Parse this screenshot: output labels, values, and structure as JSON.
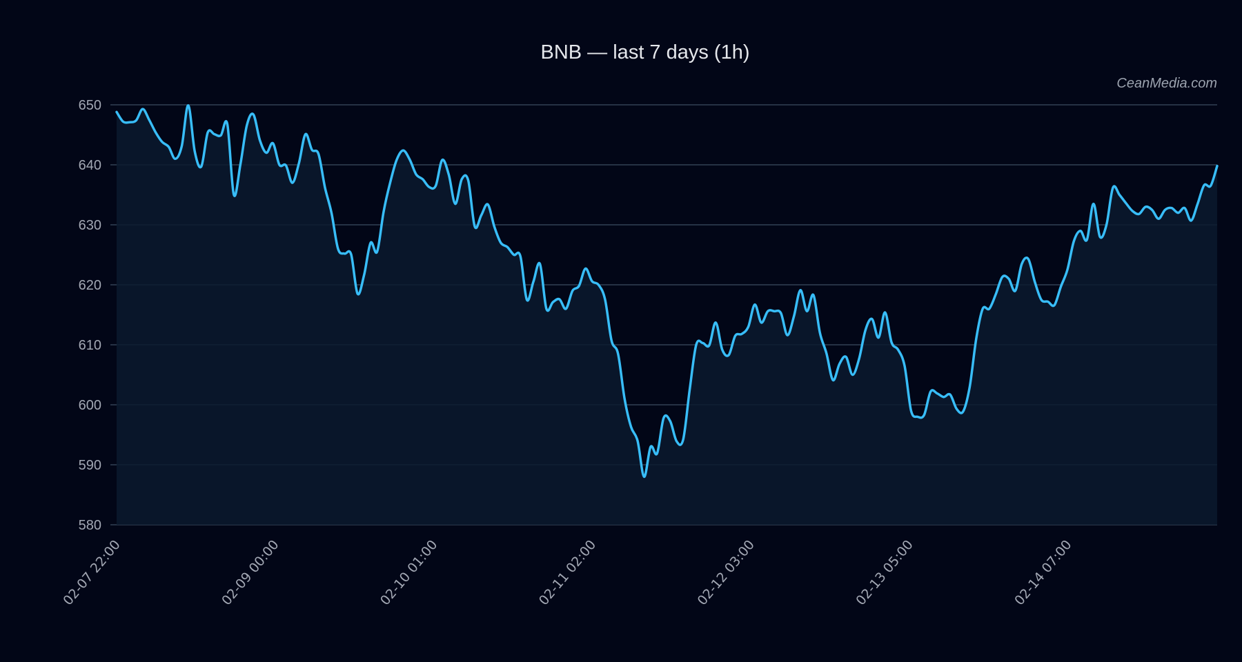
{
  "header": {
    "title": "BNB — last 7 days (1h)",
    "watermark": "CeanMedia.com"
  },
  "colors": {
    "background": "#020617",
    "line": "#38bdf8",
    "area": "#0b1a2e",
    "grid": "#334155",
    "text": "#a3a8b4"
  },
  "chart_data": {
    "type": "area",
    "title": "BNB — last 7 days (1h)",
    "xlabel": "",
    "ylabel": "",
    "ylim": [
      580,
      650
    ],
    "yticks": [
      580,
      590,
      600,
      610,
      620,
      630,
      640,
      650
    ],
    "xticks": [
      "02-07 22:00",
      "02-09 00:00",
      "02-10 01:00",
      "02-11 02:00",
      "02-12 03:00",
      "02-13 05:00",
      "02-14 07:00"
    ],
    "grid": true,
    "legend": null,
    "annotations": [
      "CeanMedia.com"
    ],
    "series": [
      {
        "name": "BNB",
        "x_start": "02-07 22:00",
        "interval": "1h",
        "values": [
          648.8,
          647.2,
          647.1,
          647.4,
          649.3,
          647.5,
          645.4,
          643.8,
          643.0,
          641.0,
          643.1,
          649.9,
          642.2,
          639.7,
          645.4,
          645.1,
          644.9,
          646.8,
          635.0,
          640.0,
          646.6,
          648.4,
          644.1,
          642.0,
          643.6,
          640.0,
          639.9,
          637.0,
          640.3,
          645.1,
          642.5,
          641.8,
          636.2,
          632.0,
          626.0,
          625.2,
          625.1,
          618.5,
          621.6,
          627.0,
          625.5,
          632.2,
          637.0,
          640.8,
          642.4,
          640.9,
          638.4,
          637.6,
          636.3,
          636.5,
          640.8,
          638.4,
          633.5,
          637.6,
          637.4,
          629.7,
          631.6,
          633.4,
          629.7,
          627.0,
          626.3,
          625.0,
          624.8,
          617.5,
          620.5,
          623.5,
          616.0,
          617.1,
          617.6,
          616.0,
          619.0,
          619.8,
          622.7,
          620.6,
          620.0,
          617.6,
          610.7,
          608.5,
          601.0,
          596.3,
          594.0,
          588.0,
          593.0,
          591.9,
          597.8,
          597.3,
          593.9,
          594.2,
          602.5,
          610.0,
          610.3,
          609.9,
          613.7,
          609.2,
          608.3,
          611.5,
          611.8,
          613.0,
          616.7,
          613.7,
          615.6,
          615.6,
          615.3,
          611.6,
          614.7,
          619.1,
          615.6,
          618.3,
          612.0,
          608.6,
          604.1,
          606.8,
          608.0,
          605.0,
          607.6,
          612.5,
          614.3,
          611.2,
          615.4,
          610.4,
          609.2,
          606.5,
          599.0,
          598.0,
          598.3,
          602.2,
          601.9,
          601.3,
          601.7,
          599.3,
          598.9,
          603.0,
          611.0,
          616.0,
          616.0,
          618.4,
          621.3,
          621.0,
          619.0,
          623.5,
          624.3,
          620.5,
          617.5,
          617.2,
          616.6,
          619.7,
          622.5,
          627.3,
          629.0,
          627.5,
          633.5,
          628.0,
          630.0,
          636.2,
          635.0,
          633.6,
          632.3,
          631.8,
          633.0,
          632.5,
          631.0,
          632.5,
          632.8,
          632.0,
          632.8,
          630.7,
          633.5,
          636.6,
          636.5,
          639.8
        ]
      }
    ]
  }
}
